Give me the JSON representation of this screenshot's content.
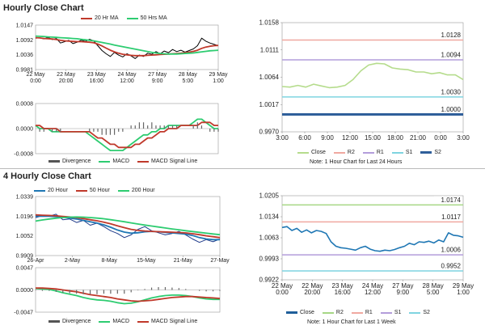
{
  "titles": {
    "hourly": "Hourly Close Chart",
    "four_hourly": "4 Hourly Close Chart"
  },
  "colors": {
    "close_blue": "#1f77b4",
    "ma_red": "#c0392b",
    "ma_green": "#2ecc71",
    "r2": "#a6d785",
    "r1": "#f0a8a0",
    "s1": "#b39ddb",
    "s2": "#7fd4e0",
    "s2_dark": "#2f5f9a",
    "macd_green": "#2ecc71",
    "signal_red": "#c0392b",
    "divergence": "#666666"
  },
  "chart_data": [
    {
      "type": "line",
      "id": "hourly_price",
      "legend": [
        "20 Hr MA",
        "50 Hrs MA"
      ],
      "y_ticks": [
        "1.0147",
        "1.0092",
        "1.0036",
        "0.9981"
      ],
      "ylim": [
        0.9981,
        1.0147
      ],
      "x_ticks": [
        "22 May\n0:00",
        "22 May\n20:00",
        "23 May\n16:00",
        "24 May\n12:00",
        "27 May\n9:00",
        "28 May\n5:00",
        "29 May\n1:00"
      ],
      "series": [
        {
          "name": "Close",
          "color": "#000000",
          "values": [
            1.0098,
            1.01,
            1.0095,
            1.0101,
            1.0093,
            1.0097,
            1.008,
            1.0085,
            1.009,
            1.0078,
            1.0083,
            1.0091,
            1.0086,
            1.0094,
            1.0088,
            1.007,
            1.0052,
            1.004,
            1.003,
            1.0045,
            1.0035,
            1.0028,
            1.004,
            1.0032,
            1.0022,
            1.0035,
            1.003,
            1.0042,
            1.0038,
            1.0048,
            1.004,
            1.005,
            1.0044,
            1.0056,
            1.0048,
            1.0053,
            1.0046,
            1.0052,
            1.0058,
            1.007,
            1.0098,
            1.0087,
            1.008,
            1.0075,
            1.007
          ]
        },
        {
          "name": "20 Hr MA",
          "color": "#c0392b",
          "values": [
            1.01,
            1.0099,
            1.0097,
            1.0096,
            1.0095,
            1.0093,
            1.009,
            1.0088,
            1.0087,
            1.0086,
            1.0085,
            1.0085,
            1.0084,
            1.0083,
            1.0081,
            1.0076,
            1.0069,
            1.0061,
            1.0053,
            1.0047,
            1.0042,
            1.0038,
            1.0036,
            1.0034,
            1.0033,
            1.0033,
            1.0033,
            1.0034,
            1.0035,
            1.0036,
            1.0037,
            1.0038,
            1.0039,
            1.004,
            1.0041,
            1.0042,
            1.0044,
            1.0046,
            1.0049,
            1.0053,
            1.006,
            1.0065,
            1.0068,
            1.007,
            1.0071
          ]
        },
        {
          "name": "50 Hrs MA",
          "color": "#2ecc71",
          "values": [
            1.0106,
            1.0105,
            1.0104,
            1.0103,
            1.0102,
            1.0101,
            1.01,
            1.0099,
            1.0098,
            1.0097,
            1.0096,
            1.0094,
            1.0092,
            1.009,
            1.0088,
            1.0085,
            1.0082,
            1.0079,
            1.0076,
            1.0072,
            1.0069,
            1.0066,
            1.0063,
            1.006,
            1.0057,
            1.0054,
            1.0051,
            1.0048,
            1.0045,
            1.0043,
            1.0041,
            1.004,
            1.0039,
            1.0039,
            1.0039,
            1.004,
            1.0041,
            1.0042,
            1.0043,
            1.0045,
            1.0047,
            1.0049,
            1.0051,
            1.0052,
            1.0053
          ]
        }
      ]
    },
    {
      "type": "line",
      "id": "hourly_macd",
      "legend": [
        "Divergence",
        "MACD",
        "MACD Signal Line"
      ],
      "y_ticks": [
        "0.0008",
        "0.0000",
        "-0.0008"
      ],
      "ylim": [
        -0.0008,
        0.0008
      ],
      "series": [
        {
          "name": "MACD",
          "color": "#2ecc71",
          "values": [
            0.0001,
            0.0,
            -0.0,
            0.0,
            -0.0001,
            -0.0001,
            -0.0001,
            -0.0001,
            -0.0001,
            -0.0001,
            -0.0001,
            -0.0001,
            -0.0001,
            -0.0002,
            -0.0003,
            -0.0004,
            -0.0005,
            -0.0006,
            -0.0007,
            -0.0007,
            -0.0007,
            -0.0007,
            -0.0006,
            -0.0005,
            -0.0004,
            -0.0003,
            -0.0002,
            -0.0002,
            -0.0001,
            -0.0001,
            -0.0,
            0.0,
            0.0001,
            0.0001,
            0.0001,
            0.0001,
            0.0001,
            0.0001,
            0.0002,
            0.0003,
            0.0003,
            0.0002,
            0.0001,
            0.0,
            -0.0
          ]
        },
        {
          "name": "MACD Signal Line",
          "color": "#c0392b",
          "values": [
            0.0001,
            0.0001,
            0.0,
            0.0,
            0.0,
            -0.0,
            -0.0001,
            -0.0001,
            -0.0001,
            -0.0001,
            -0.0001,
            -0.0001,
            -0.0001,
            -0.0001,
            -0.0002,
            -0.0003,
            -0.0003,
            -0.0004,
            -0.0005,
            -0.0005,
            -0.0006,
            -0.0006,
            -0.0006,
            -0.0006,
            -0.0005,
            -0.0005,
            -0.0004,
            -0.0003,
            -0.0003,
            -0.0002,
            -0.0001,
            -0.0001,
            -0.0,
            0.0,
            0.0,
            0.0001,
            0.0001,
            0.0001,
            0.0001,
            0.0001,
            0.0002,
            0.0002,
            0.0002,
            0.0001,
            0.0001
          ]
        },
        {
          "name": "Divergence",
          "color": "#666666",
          "type": "bar",
          "values": [
            0.0,
            -0.0001,
            -0.0001,
            0.0,
            -0.0001,
            -0.0001,
            -0.0001,
            0.0,
            0.0,
            0.0,
            0.0,
            0.0,
            0.0,
            -0.0001,
            -0.0001,
            -0.0001,
            -0.0002,
            -0.0002,
            -0.0002,
            -0.0002,
            -0.0001,
            -0.0001,
            0.0,
            0.0001,
            0.0001,
            0.0002,
            0.0002,
            0.0001,
            0.0002,
            0.0001,
            0.0001,
            0.0001,
            0.0001,
            0.0001,
            0.0001,
            0.0,
            0.0,
            0.0,
            0.0001,
            0.0002,
            0.0001,
            0.0,
            -0.0001,
            -0.0001,
            -0.0001
          ]
        }
      ]
    },
    {
      "type": "line",
      "id": "hourly_levels",
      "y_ticks": [
        "1.0158",
        "1.0111",
        "1.0064",
        "1.0017",
        "0.9970"
      ],
      "ylim": [
        0.997,
        1.0158
      ],
      "x_ticks": [
        "3:00",
        "6:00",
        "9:00",
        "12:00",
        "15:00",
        "18:00",
        "21:00",
        "0:00",
        "3:00"
      ],
      "levels": [
        {
          "name": "R2",
          "value": 1.0128,
          "label": "1.0128",
          "color": "#f0a8a0"
        },
        {
          "name": "R1",
          "value": 1.0094,
          "label": "1.0094",
          "color": "#b39ddb"
        },
        {
          "name": "S1",
          "value": 1.003,
          "label": "1.0030",
          "color": "#7fd4e0"
        },
        {
          "name": "S2",
          "value": 1.0,
          "label": "1.0000",
          "color": "#2f5f9a"
        }
      ],
      "series": [
        {
          "name": "Close",
          "color": "#b5dc8c",
          "values": [
            1.0048,
            1.0047,
            1.005,
            1.0047,
            1.0052,
            1.0049,
            1.0046,
            1.0047,
            1.005,
            1.006,
            1.0075,
            1.0085,
            1.0088,
            1.0087,
            1.008,
            1.0078,
            1.0077,
            1.0073,
            1.0073,
            1.007,
            1.0072,
            1.0068,
            1.0068,
            1.006
          ]
        }
      ],
      "legend": [
        "Close",
        "R2",
        "R1",
        "S1",
        "S2"
      ],
      "note": "Note: 1 Hour Chart for Last 24 Hours"
    },
    {
      "type": "line",
      "id": "four_hourly_price",
      "legend": [
        "20 Hour",
        "50 Hour",
        "200 Hour"
      ],
      "y_ticks": [
        "1.0339",
        "1.0196",
        "1.0052",
        "0.9909"
      ],
      "ylim": [
        0.9909,
        1.0339
      ],
      "x_ticks": [
        "26-Apr",
        "2-May",
        "8-May",
        "15-May",
        "21-May",
        "27-May"
      ],
      "series": [
        {
          "name": "Close",
          "color": "#1f3b8a",
          "values": [
            1.0185,
            1.02,
            1.0195,
            1.021,
            1.017,
            1.0175,
            1.015,
            1.0165,
            1.013,
            1.0145,
            1.012,
            1.009,
            1.007,
            1.004,
            1.006,
            1.01,
            1.012,
            1.009,
            1.0075,
            1.006,
            1.007,
            1.0085,
            1.006,
            1.003,
            1.0005,
            1.0025,
            1.001,
            1.003
          ]
        },
        {
          "name": "20 Hour",
          "color": "#1f77b4",
          "values": [
            1.0195,
            1.0196,
            1.0195,
            1.0193,
            1.0188,
            1.0182,
            1.0175,
            1.0165,
            1.0155,
            1.0145,
            1.0133,
            1.0115,
            1.0095,
            1.008,
            1.0072,
            1.0075,
            1.0082,
            1.0085,
            1.0083,
            1.0078,
            1.0074,
            1.007,
            1.0065,
            1.0055,
            1.004,
            1.003,
            1.0025,
            1.0025
          ]
        },
        {
          "name": "50 Hour",
          "color": "#c0392b",
          "values": [
            1.0205,
            1.0203,
            1.0201,
            1.0198,
            1.0194,
            1.019,
            1.0185,
            1.0178,
            1.017,
            1.0162,
            1.0152,
            1.014,
            1.0126,
            1.0112,
            1.01,
            1.0092,
            1.0088,
            1.0085,
            1.0083,
            1.0081,
            1.0079,
            1.0077,
            1.0074,
            1.0068,
            1.0061,
            1.0053,
            1.0046,
            1.004
          ]
        },
        {
          "name": "200 Hour",
          "color": "#2ecc71",
          "values": [
            1.016,
            1.0168,
            1.0175,
            1.0181,
            1.0186,
            1.0189,
            1.019,
            1.0189,
            1.0186,
            1.0182,
            1.0177,
            1.017,
            1.0163,
            1.0155,
            1.0147,
            1.0139,
            1.0131,
            1.0124,
            1.0117,
            1.011,
            1.0103,
            1.0097,
            1.009,
            1.0084,
            1.0078,
            1.0072,
            1.0066,
            1.0061
          ]
        }
      ]
    },
    {
      "type": "line",
      "id": "four_hourly_macd",
      "legend": [
        "Divergence",
        "MACD",
        "MACD Signal Line"
      ],
      "y_ticks": [
        "0.0047",
        "0.0000",
        "-0.0047"
      ],
      "ylim": [
        -0.0047,
        0.0047
      ],
      "series": [
        {
          "name": "MACD",
          "color": "#2ecc71",
          "values": [
            0.0003,
            0.0002,
            0.0001,
            -0.0002,
            -0.0006,
            -0.0009,
            -0.0012,
            -0.0016,
            -0.0019,
            -0.0021,
            -0.0022,
            -0.0024,
            -0.0027,
            -0.0029,
            -0.0028,
            -0.0025,
            -0.0021,
            -0.0017,
            -0.0014,
            -0.0012,
            -0.0011,
            -0.0011,
            -0.0012,
            -0.0014,
            -0.0017,
            -0.0019,
            -0.002,
            -0.002
          ]
        },
        {
          "name": "MACD Signal Line",
          "color": "#c0392b",
          "values": [
            0.0004,
            0.0004,
            0.0003,
            0.0002,
            0.0,
            -0.0002,
            -0.0004,
            -0.0007,
            -0.001,
            -0.0012,
            -0.0014,
            -0.0016,
            -0.0019,
            -0.0021,
            -0.0023,
            -0.0024,
            -0.0023,
            -0.0022,
            -0.002,
            -0.0018,
            -0.0016,
            -0.0015,
            -0.0014,
            -0.0014,
            -0.0015,
            -0.0016,
            -0.0017,
            -0.0018
          ]
        },
        {
          "name": "Divergence",
          "color": "#666666",
          "type": "bar",
          "values": [
            -0.0001,
            -0.0002,
            -0.0002,
            -0.0004,
            -0.0006,
            -0.0007,
            -0.0008,
            -0.0009,
            -0.0009,
            -0.0009,
            -0.0008,
            -0.0008,
            -0.0008,
            -0.0008,
            -0.0005,
            -0.0001,
            0.0002,
            0.0005,
            0.0006,
            0.0006,
            0.0005,
            0.0004,
            0.0002,
            0.0,
            -0.0002,
            -0.0003,
            -0.0003,
            -0.0002
          ]
        }
      ]
    },
    {
      "type": "line",
      "id": "four_hourly_levels",
      "y_ticks": [
        "1.0205",
        "1.0134",
        "1.0063",
        "0.9993",
        "0.9922"
      ],
      "ylim": [
        0.9922,
        1.0205
      ],
      "x_ticks": [
        "22 May\n0:00",
        "22 May\n20:00",
        "23 May\n16:00",
        "24 May\n12:00",
        "27 May\n9:00",
        "28 May\n5:00",
        "29 May\n1:00"
      ],
      "levels": [
        {
          "name": "R2",
          "value": 1.0174,
          "label": "1.0174",
          "color": "#a6d785"
        },
        {
          "name": "R1",
          "value": 1.0117,
          "label": "1.0117",
          "color": "#f0a8a0"
        },
        {
          "name": "S1",
          "value": 1.0006,
          "label": "1.0006",
          "color": "#b39ddb"
        },
        {
          "name": "S2",
          "value": 0.9952,
          "label": "0.9952",
          "color": "#7fd4e0"
        }
      ],
      "series": [
        {
          "name": "Close",
          "color": "#1f77b4",
          "values": [
            1.0098,
            1.0101,
            1.0088,
            1.0095,
            1.0082,
            1.009,
            1.008,
            1.0088,
            1.0085,
            1.0078,
            1.005,
            1.0035,
            1.003,
            1.0028,
            1.0025,
            1.0022,
            1.003,
            1.0035,
            1.0025,
            1.002,
            1.0018,
            1.0022,
            1.002,
            1.0024,
            1.003,
            1.0035,
            1.0045,
            1.004,
            1.005,
            1.0048,
            1.0052,
            1.0046,
            1.0056,
            1.005,
            1.008,
            1.0072,
            1.007,
            1.0065
          ]
        }
      ],
      "legend": [
        "Close",
        "R2",
        "R1",
        "S1",
        "S2"
      ],
      "note": "Note: 1 Hour Chart for Last 1 Week"
    }
  ]
}
